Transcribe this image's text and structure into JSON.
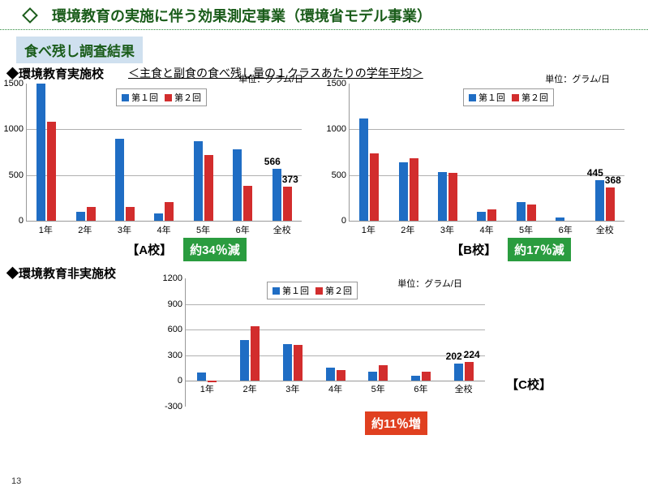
{
  "title": "環境教育の実施に伴う効果測定事業（環境省モデル事業）",
  "subtitle": "食べ残し調査結果",
  "section1_label": "◆環境教育実施校",
  "subheading": "＜主食と副食の食べ残し量の１クラスあたりの学年平均＞",
  "section2_label": "◆環境教育非実施校",
  "unit_label": "単位：グラム/日",
  "legend": {
    "s1": "第１回",
    "s2": "第２回"
  },
  "slide_number": "13",
  "chartA": {
    "school_label": "【A校】",
    "badge": "約34％減",
    "badge_color": "green",
    "ylim": [
      0,
      1500
    ],
    "ytick_step": 500,
    "x": [
      "1年",
      "2年",
      "3年",
      "4年",
      "5年",
      "6年",
      "全校"
    ],
    "s1": [
      1500,
      100,
      900,
      80,
      870,
      780,
      566
    ],
    "s2": [
      1080,
      150,
      150,
      200,
      720,
      380,
      373
    ],
    "value_labels": [
      {
        "idx": 6,
        "s": "s1",
        "v": "566"
      },
      {
        "idx": 6,
        "s": "s2",
        "v": "373"
      }
    ]
  },
  "chartB": {
    "school_label": "【B校】",
    "badge": "約17％減",
    "badge_color": "green",
    "ylim": [
      0,
      1500
    ],
    "ytick_step": 500,
    "x": [
      "1年",
      "2年",
      "3年",
      "4年",
      "5年",
      "6年",
      "全校"
    ],
    "s1": [
      1120,
      640,
      530,
      100,
      200,
      40,
      445
    ],
    "s2": [
      740,
      680,
      520,
      120,
      180,
      0,
      368
    ],
    "value_labels": [
      {
        "idx": 6,
        "s": "s1",
        "v": "445"
      },
      {
        "idx": 6,
        "s": "s2",
        "v": "368"
      }
    ]
  },
  "chartC": {
    "school_label": "【C校】",
    "badge": "約11％増",
    "badge_color": "red",
    "ylim": [
      -300,
      1200
    ],
    "ytick_step": 300,
    "x": [
      "1年",
      "2年",
      "3年",
      "4年",
      "5年",
      "6年",
      "全校"
    ],
    "s1": [
      100,
      480,
      430,
      160,
      110,
      60,
      202
    ],
    "s2": [
      -20,
      640,
      420,
      130,
      180,
      110,
      224
    ],
    "value_labels": [
      {
        "idx": 6,
        "s": "s1",
        "v": "202"
      },
      {
        "idx": 6,
        "s": "s2",
        "v": "224"
      }
    ]
  },
  "colors": {
    "s1": "#1f6dc4",
    "s2": "#d22d2d",
    "grid": "#b0b0b0",
    "badge_green": "#2a9c3f",
    "badge_red": "#e04020"
  }
}
